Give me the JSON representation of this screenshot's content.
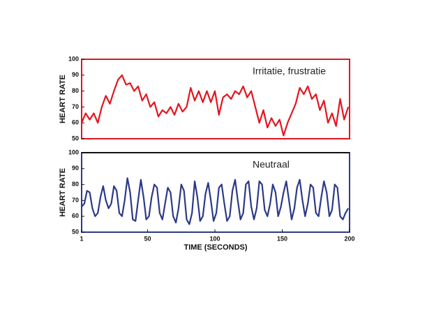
{
  "chart_data": [
    {
      "type": "line",
      "ylabel": "HEART RATE",
      "annotation": "Irritatie, frustratie",
      "color": "#e3151f",
      "xlim": [
        1,
        200
      ],
      "ylim": [
        50,
        100
      ],
      "yticks": [
        50,
        60,
        70,
        80,
        90,
        100
      ],
      "x": [
        1,
        4,
        7,
        10,
        13,
        16,
        19,
        22,
        25,
        28,
        31,
        34,
        37,
        40,
        43,
        46,
        49,
        52,
        55,
        58,
        61,
        64,
        67,
        70,
        73,
        76,
        79,
        82,
        85,
        88,
        91,
        94,
        97,
        100,
        103,
        106,
        109,
        112,
        115,
        118,
        121,
        124,
        127,
        130,
        133,
        136,
        139,
        142,
        145,
        148,
        151,
        154,
        157,
        160,
        163,
        166,
        169,
        172,
        175,
        178,
        181,
        184,
        187,
        190,
        193,
        196,
        199
      ],
      "values": [
        60,
        66,
        62,
        66,
        60,
        70,
        77,
        72,
        80,
        87,
        90,
        84,
        85,
        80,
        83,
        74,
        78,
        70,
        73,
        64,
        68,
        66,
        70,
        65,
        72,
        67,
        70,
        82,
        74,
        80,
        73,
        80,
        73,
        80,
        65,
        76,
        78,
        75,
        80,
        78,
        83,
        76,
        80,
        70,
        60,
        68,
        57,
        63,
        58,
        62,
        52,
        60,
        66,
        72,
        82,
        78,
        83,
        75,
        78,
        68,
        74,
        60,
        66,
        58,
        75,
        62,
        70
      ]
    },
    {
      "type": "line",
      "ylabel": "HEART RATE",
      "xlabel": "TIME (SECONDS)",
      "annotation": "Neutraal",
      "color": "#2b3a87",
      "xlim": [
        1,
        200
      ],
      "ylim": [
        50,
        100
      ],
      "yticks": [
        50,
        60,
        70,
        80,
        90,
        100
      ],
      "xticks": [
        1,
        50,
        100,
        150,
        200
      ],
      "x": [
        1,
        3,
        5,
        7,
        9,
        11,
        13,
        15,
        17,
        19,
        21,
        23,
        25,
        27,
        29,
        31,
        33,
        35,
        37,
        39,
        41,
        43,
        45,
        47,
        49,
        51,
        53,
        55,
        57,
        59,
        61,
        63,
        65,
        67,
        69,
        71,
        73,
        75,
        77,
        79,
        81,
        83,
        85,
        87,
        89,
        91,
        93,
        95,
        97,
        99,
        101,
        103,
        105,
        107,
        109,
        111,
        113,
        115,
        117,
        119,
        121,
        123,
        125,
        127,
        129,
        131,
        133,
        135,
        137,
        139,
        141,
        143,
        145,
        147,
        149,
        151,
        153,
        155,
        157,
        159,
        161,
        163,
        165,
        167,
        169,
        171,
        173,
        175,
        177,
        179,
        181,
        183,
        185,
        187,
        189,
        191,
        193,
        195,
        197,
        199
      ],
      "values": [
        66,
        68,
        76,
        75,
        65,
        60,
        62,
        72,
        79,
        70,
        65,
        68,
        79,
        76,
        62,
        60,
        70,
        84,
        75,
        58,
        57,
        70,
        83,
        72,
        58,
        60,
        72,
        80,
        78,
        62,
        58,
        68,
        78,
        75,
        60,
        56,
        65,
        80,
        76,
        58,
        55,
        62,
        82,
        72,
        57,
        60,
        74,
        81,
        70,
        57,
        62,
        78,
        80,
        68,
        57,
        60,
        76,
        83,
        70,
        58,
        62,
        80,
        82,
        66,
        58,
        65,
        82,
        80,
        64,
        60,
        68,
        80,
        75,
        60,
        66,
        75,
        82,
        70,
        58,
        65,
        78,
        83,
        70,
        60,
        68,
        80,
        78,
        62,
        60,
        72,
        82,
        75,
        60,
        64,
        80,
        78,
        60,
        58,
        62,
        65
      ]
    }
  ]
}
